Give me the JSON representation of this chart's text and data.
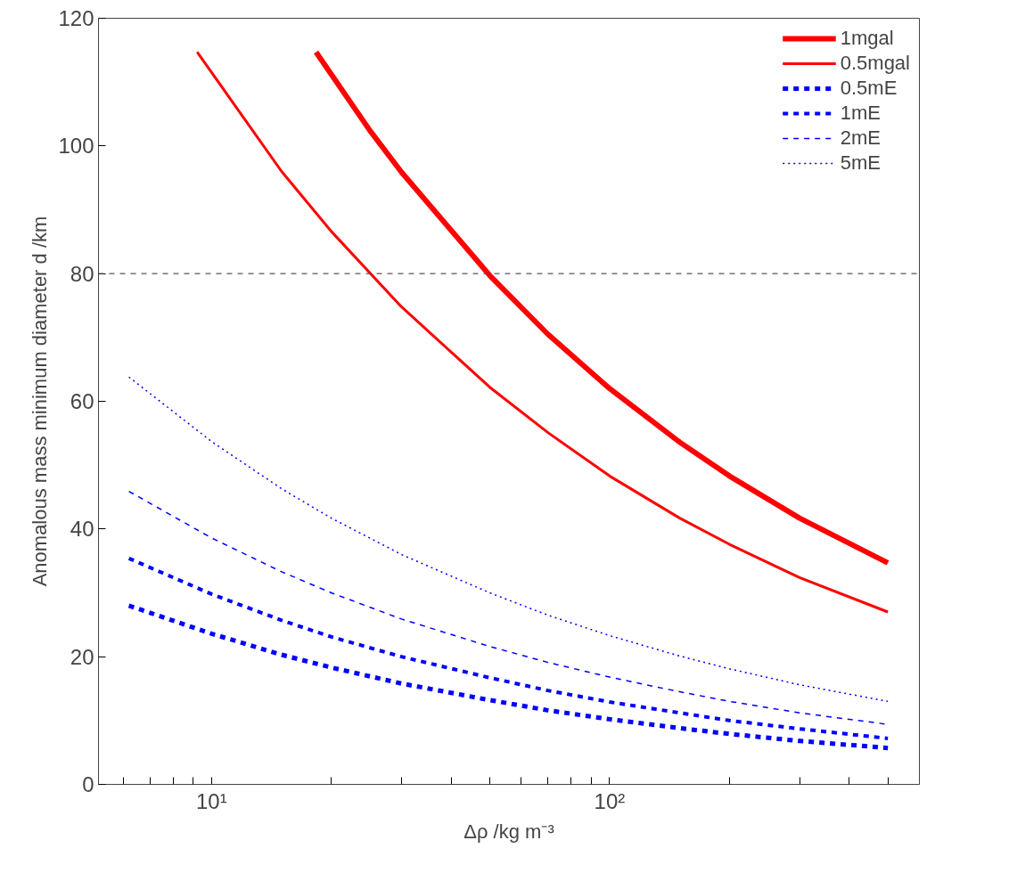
{
  "chart_data": {
    "type": "line",
    "xlabel": "Δρ /kg m⁻³",
    "ylabel": "Anomalous mass minimum diameter d /km",
    "log": "x",
    "xlim": [
      5.2,
      600
    ],
    "ylim": [
      0,
      120
    ],
    "xticks": [
      {
        "value": 6,
        "label": null
      },
      {
        "value": 7,
        "label": null
      },
      {
        "value": 8,
        "label": null
      },
      {
        "value": 9,
        "label": null
      },
      {
        "value": 10,
        "label": "10¹"
      },
      {
        "value": 20,
        "label": null
      },
      {
        "value": 30,
        "label": null
      },
      {
        "value": 40,
        "label": null
      },
      {
        "value": 50,
        "label": null
      },
      {
        "value": 60,
        "label": null
      },
      {
        "value": 70,
        "label": null
      },
      {
        "value": 80,
        "label": null
      },
      {
        "value": 90,
        "label": null
      },
      {
        "value": 100,
        "label": "10²"
      },
      {
        "value": 200,
        "label": null
      },
      {
        "value": 300,
        "label": null
      },
      {
        "value": 400,
        "label": null
      },
      {
        "value": 500,
        "label": null
      }
    ],
    "yticks": [
      0,
      20,
      40,
      60,
      80,
      100,
      120
    ],
    "grid": false,
    "legend": "top right",
    "marker": "none",
    "ref_lines": [
      {
        "axis": "y",
        "value": 80,
        "color": "#555555",
        "line_style": "dashed"
      }
    ],
    "series": [
      {
        "name": "1mgal",
        "color": "#ff0000",
        "line_style": "solid",
        "x": [
          18.3,
          25,
          30,
          50,
          70,
          100,
          150,
          200,
          300,
          500
        ],
        "values": [
          114.7,
          102.4,
          95.9,
          79.7,
          70.5,
          62.0,
          53.6,
          48.3,
          41.7,
          34.7
        ]
      },
      {
        "name": "0.5mgal",
        "color": "#ff0000",
        "line_style": "solid",
        "x": [
          9.2,
          15,
          20,
          30,
          50,
          70,
          100,
          150,
          200,
          300,
          500
        ],
        "values": [
          114.7,
          96.0,
          86.6,
          74.8,
          62.2,
          55.1,
          48.3,
          41.7,
          37.6,
          32.4,
          27.0
        ]
      },
      {
        "name": "0.5mE",
        "color": "#0000ff",
        "line_style": "dashed",
        "x": [
          6.2,
          10,
          15,
          20,
          30,
          50,
          70,
          100,
          150,
          200,
          300,
          500
        ],
        "values": [
          28.0,
          23.6,
          20.3,
          18.3,
          15.8,
          13.2,
          11.6,
          10.2,
          8.8,
          7.9,
          6.8,
          5.7
        ]
      },
      {
        "name": "1mE",
        "color": "#0000ff",
        "line_style": "dashed",
        "x": [
          6.2,
          10,
          15,
          20,
          30,
          50,
          70,
          100,
          150,
          200,
          300,
          500
        ],
        "values": [
          35.4,
          29.8,
          25.7,
          23.1,
          20.0,
          16.7,
          14.7,
          12.9,
          11.2,
          10.0,
          8.7,
          7.2
        ]
      },
      {
        "name": "2mE",
        "color": "#0000ff",
        "line_style": "dashed",
        "x": [
          6.2,
          10,
          15,
          20,
          30,
          50,
          70,
          100,
          150,
          200,
          300,
          500
        ],
        "values": [
          45.9,
          38.6,
          33.3,
          30.0,
          25.9,
          21.6,
          19.1,
          16.8,
          14.5,
          13.0,
          11.2,
          9.4
        ]
      },
      {
        "name": "5mE",
        "color": "#0000ff",
        "line_style": "dotted",
        "x": [
          6.2,
          10,
          15,
          20,
          30,
          50,
          70,
          100,
          150,
          200,
          300,
          500
        ],
        "values": [
          63.8,
          53.7,
          46.3,
          41.7,
          36.0,
          30.0,
          26.5,
          23.3,
          20.1,
          18.1,
          15.6,
          13.0
        ]
      }
    ]
  }
}
